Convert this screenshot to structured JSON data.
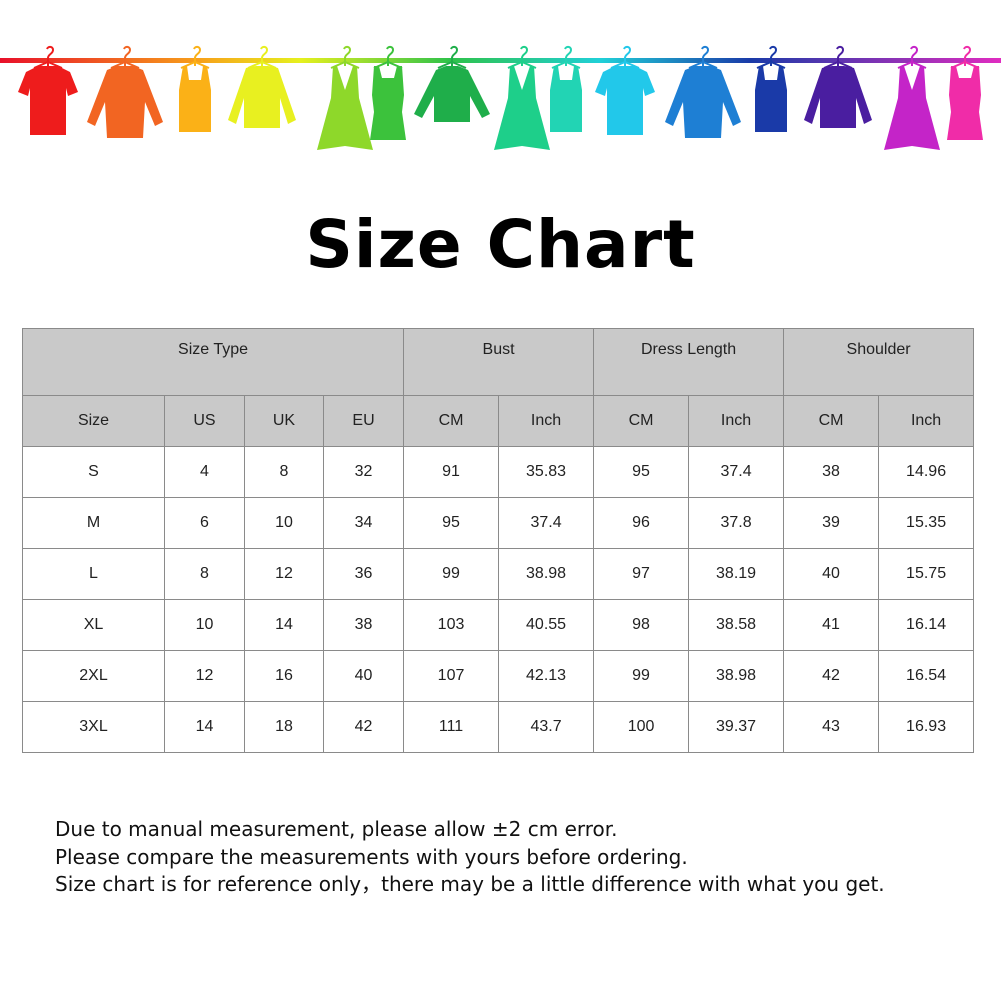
{
  "banner": {
    "icon": "hanging-clothes-rainbow",
    "items": [
      {
        "type": "tshirt",
        "color": "#ee1c1c"
      },
      {
        "type": "shirt",
        "color": "#f26522"
      },
      {
        "type": "tank",
        "color": "#fbb117"
      },
      {
        "type": "sweater",
        "color": "#e8f020"
      },
      {
        "type": "dress",
        "color": "#8ed82a"
      },
      {
        "type": "beltdress",
        "color": "#3cc23c"
      },
      {
        "type": "longsleeve",
        "color": "#1fae4a"
      },
      {
        "type": "dress",
        "color": "#1ecf8a"
      },
      {
        "type": "tank",
        "color": "#22d4b4"
      },
      {
        "type": "tshirt",
        "color": "#22c8ea"
      },
      {
        "type": "shirt",
        "color": "#1e7fd4"
      },
      {
        "type": "tank",
        "color": "#1a3aa8"
      },
      {
        "type": "sweater",
        "color": "#4a1ea0"
      },
      {
        "type": "dress",
        "color": "#c424c8"
      },
      {
        "type": "beltdress",
        "color": "#f02ca8"
      }
    ]
  },
  "title": "Size Chart",
  "table": {
    "group_headers": [
      "Size Type",
      "Bust",
      "Dress Length",
      "Shoulder"
    ],
    "sub_headers": [
      "Size",
      "US",
      "UK",
      "EU",
      "CM",
      "Inch",
      "CM",
      "Inch",
      "CM",
      "Inch"
    ],
    "rows": [
      [
        "S",
        "4",
        "8",
        "32",
        "91",
        "35.83",
        "95",
        "37.4",
        "38",
        "14.96"
      ],
      [
        "M",
        "6",
        "10",
        "34",
        "95",
        "37.4",
        "96",
        "37.8",
        "39",
        "15.35"
      ],
      [
        "L",
        "8",
        "12",
        "36",
        "99",
        "38.98",
        "97",
        "38.19",
        "40",
        "15.75"
      ],
      [
        "XL",
        "10",
        "14",
        "38",
        "103",
        "40.55",
        "98",
        "38.58",
        "41",
        "16.14"
      ],
      [
        "2XL",
        "12",
        "16",
        "40",
        "107",
        "42.13",
        "99",
        "38.98",
        "42",
        "16.54"
      ],
      [
        "3XL",
        "14",
        "18",
        "42",
        "111",
        "43.7",
        "100",
        "39.37",
        "43",
        "16.93"
      ]
    ]
  },
  "notes": [
    "Due to manual measurement, please allow ±2 cm error.",
    "Please compare the measurements with yours before ordering.",
    "Size chart is for reference only，there may be a little difference with what you get."
  ]
}
